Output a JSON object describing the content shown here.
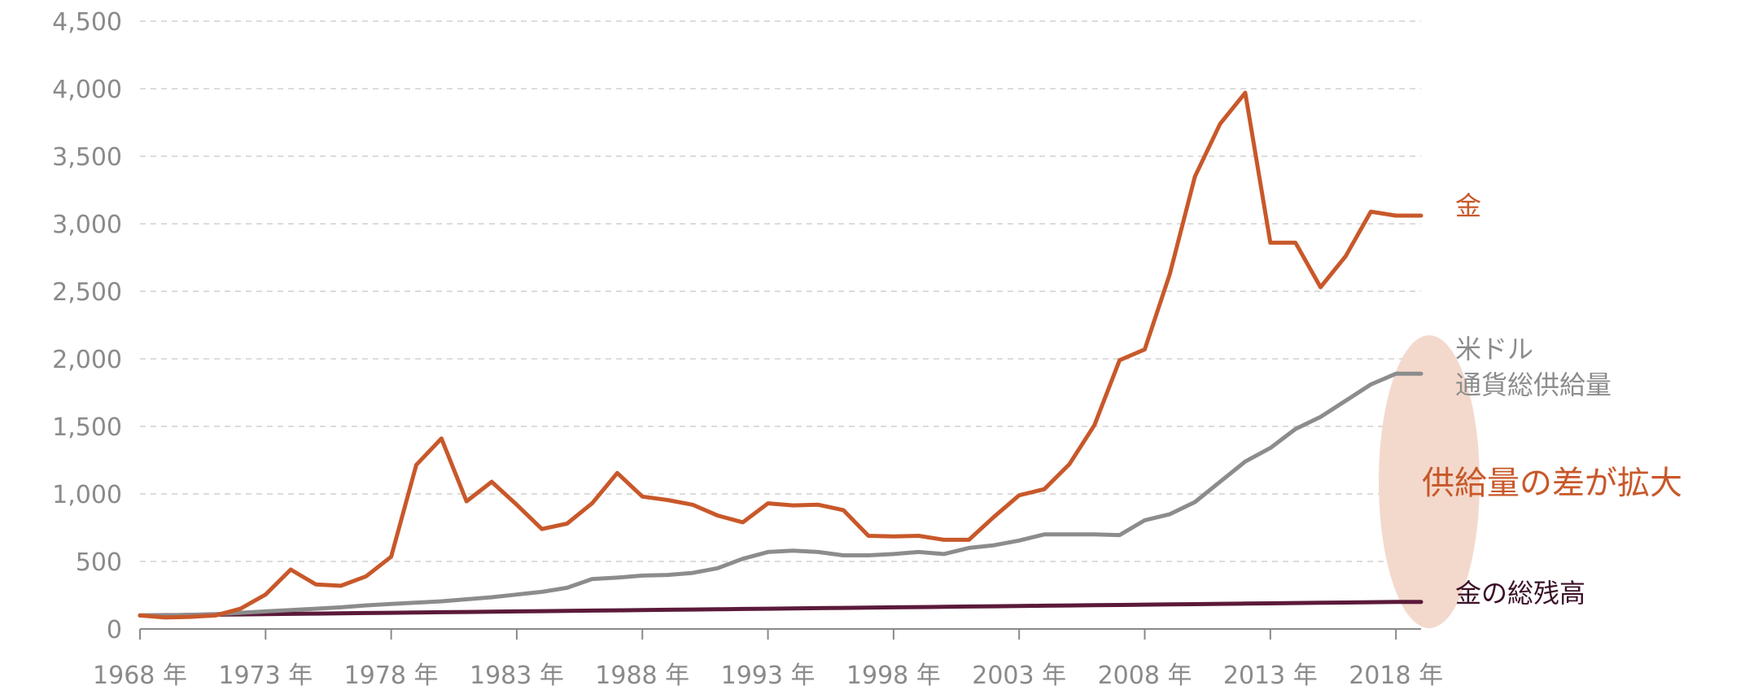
{
  "chart_data": {
    "type": "line",
    "xlabel": "",
    "ylabel": "",
    "ylim": [
      0,
      4500
    ],
    "yticks": [
      "0",
      "500",
      "1,000",
      "1,500",
      "2,000",
      "2,500",
      "3,000",
      "3,500",
      "4,000",
      "4,500"
    ],
    "xticks": [
      {
        "year": 1968,
        "label": "1968 年"
      },
      {
        "year": 1973,
        "label": "1973 年"
      },
      {
        "year": 1978,
        "label": "1978 年"
      },
      {
        "year": 1983,
        "label": "1983 年"
      },
      {
        "year": 1988,
        "label": "1988 年"
      },
      {
        "year": 1993,
        "label": "1993 年"
      },
      {
        "year": 1998,
        "label": "1998 年"
      },
      {
        "year": 2003,
        "label": "2003 年"
      },
      {
        "year": 2008,
        "label": "2008 年"
      },
      {
        "year": 2013,
        "label": "2013 年"
      },
      {
        "year": 2018,
        "label": "2018 年"
      }
    ],
    "grid": true,
    "x": [
      1968,
      1969,
      1970,
      1971,
      1972,
      1973,
      1974,
      1975,
      1976,
      1977,
      1978,
      1979,
      1980,
      1981,
      1982,
      1983,
      1984,
      1985,
      1986,
      1987,
      1988,
      1989,
      1990,
      1991,
      1992,
      1993,
      1994,
      1995,
      1996,
      1997,
      1998,
      1999,
      2000,
      2001,
      2002,
      2003,
      2004,
      2005,
      2006,
      2007,
      2008,
      2009,
      2010,
      2011,
      2012,
      2013,
      2014,
      2015,
      2016,
      2017,
      2018,
      2019
    ],
    "series": [
      {
        "name": "金",
        "color": "#c8582a",
        "values": [
          100,
          85,
          90,
          100,
          150,
          255,
          440,
          330,
          320,
          390,
          535,
          1215,
          1410,
          945,
          1090,
          920,
          740,
          780,
          930,
          1155,
          980,
          955,
          920,
          840,
          790,
          930,
          915,
          920,
          880,
          690,
          685,
          690,
          660,
          660,
          830,
          990,
          1035,
          1220,
          1510,
          1990,
          2070,
          2630,
          3350,
          3740,
          3970,
          2860,
          2860,
          2530,
          2760,
          3090,
          3060,
          3060
        ]
      },
      {
        "name": "米ドル\n通貨総供給量",
        "color": "#8c8c8c",
        "values": [
          100,
          100,
          105,
          110,
          120,
          130,
          140,
          150,
          160,
          175,
          185,
          195,
          205,
          220,
          235,
          255,
          275,
          305,
          370,
          380,
          395,
          400,
          415,
          450,
          520,
          570,
          580,
          570,
          545,
          545,
          555,
          570,
          555,
          600,
          620,
          655,
          700,
          700,
          700,
          695,
          805,
          850,
          940,
          1090,
          1240,
          1340,
          1480,
          1570,
          1690,
          1810,
          1890,
          1890
        ]
      },
      {
        "name": "金の総残高",
        "color": "#5b1a3a",
        "values": [
          100,
          102,
          104,
          106,
          108,
          110,
          112,
          114,
          116,
          118,
          120,
          122,
          124,
          126,
          128,
          130,
          132,
          134,
          136,
          138,
          140,
          142,
          144,
          146,
          148,
          150,
          152,
          154,
          156,
          158,
          160,
          162,
          164,
          166,
          168,
          170,
          172,
          174,
          176,
          178,
          180,
          182,
          184,
          186,
          188,
          190,
          192,
          194,
          196,
          198,
          200,
          200
        ]
      }
    ],
    "annotation": {
      "text": "供給量の差が拡大",
      "color": "#c8582a",
      "highlight": "#f3d9cc"
    }
  }
}
